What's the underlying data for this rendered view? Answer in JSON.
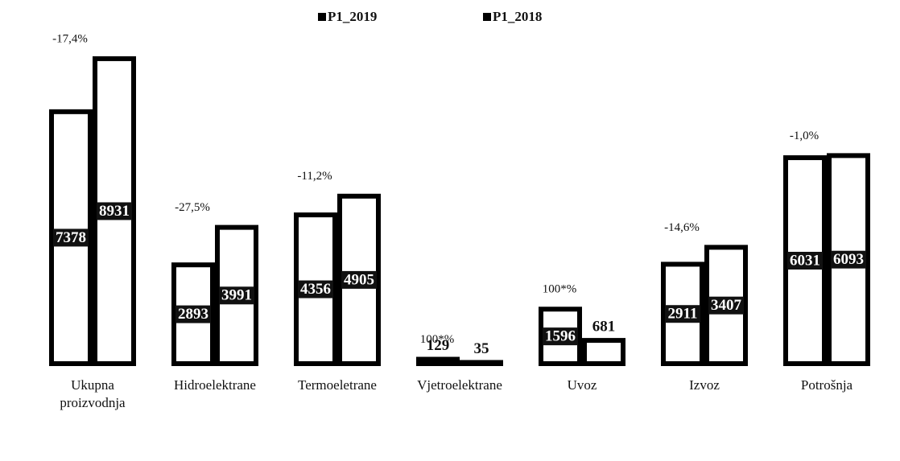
{
  "chart_data": {
    "type": "bar",
    "categories": [
      "Ukupna proizvodnja",
      "Hidroelektrane",
      "Termoeletrane",
      "Vjetroelektrane",
      "Uvoz",
      "Izvoz",
      "Potrošnja"
    ],
    "series": [
      {
        "name": "P1_2019",
        "color": "#000000",
        "values": [
          7378,
          2893,
          4356,
          129,
          1596,
          2911,
          6031
        ]
      },
      {
        "name": "P1_2018",
        "color": "#000000",
        "values": [
          8931,
          3991,
          4905,
          35,
          681,
          3407,
          6093
        ]
      }
    ],
    "annotations": [
      "-17,4%",
      "-27,5%",
      "-11,2%",
      "100*%",
      "100*%",
      "-14,6%",
      "-1,0%"
    ],
    "ylim": [
      0,
      9000
    ],
    "legend": "top"
  }
}
